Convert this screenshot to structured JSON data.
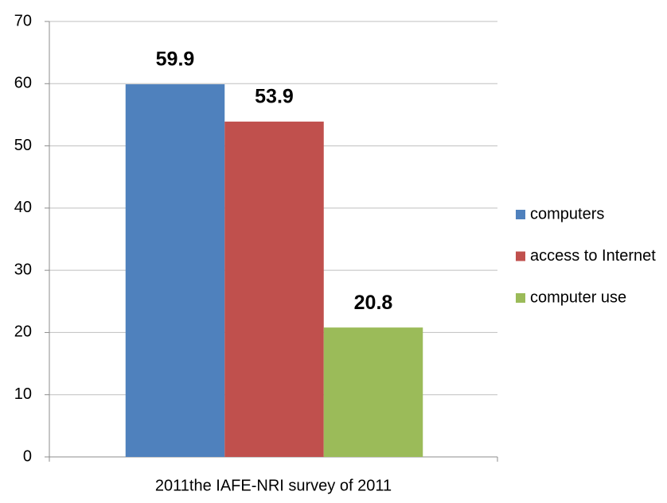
{
  "chart_data": {
    "type": "bar",
    "categories": [
      "2011the IAFE-NRI survey of 2011"
    ],
    "series": [
      {
        "name": "computers",
        "color": "#4f81bd",
        "values": [
          59.9
        ]
      },
      {
        "name": "access to Internet",
        "color": "#c0504d",
        "values": [
          53.9
        ]
      },
      {
        "name": "computer use",
        "color": "#9bbb59",
        "values": [
          20.8
        ]
      }
    ],
    "ylim": [
      0,
      70
    ],
    "yticks": [
      0,
      10,
      20,
      30,
      40,
      50,
      60,
      70
    ],
    "grid": true,
    "legend": "right"
  }
}
